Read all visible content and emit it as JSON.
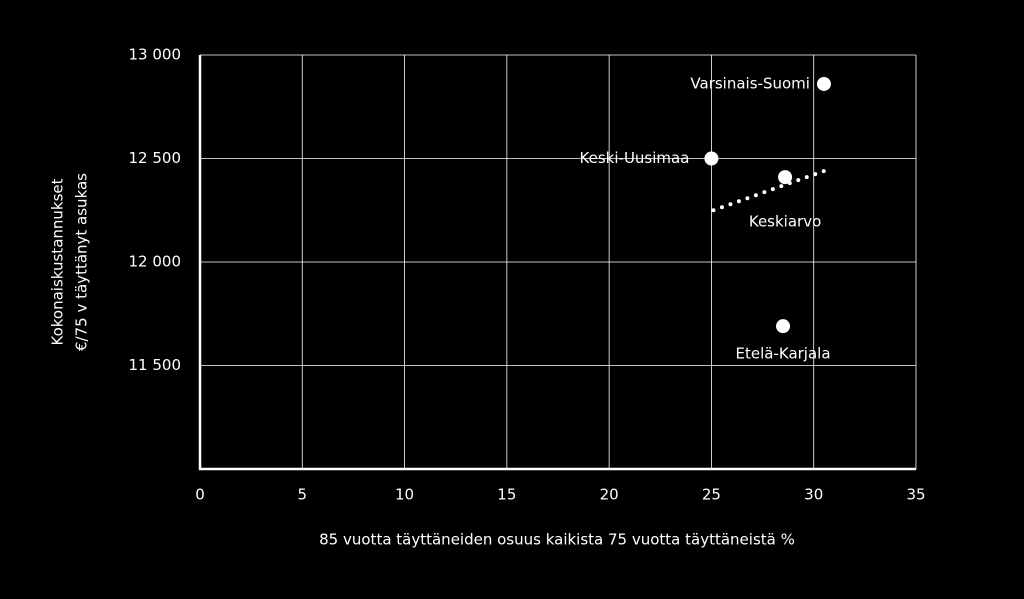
{
  "chart_data": {
    "type": "scatter",
    "x_label": "85 vuotta täyttäneiden osuus kaikista 75 vuotta täyttäneistä %",
    "y_label": [
      "Kokonaiskustannukset",
      "€/75 v täyttänyt asukas"
    ],
    "labels": [
      "Varsinais-Suomi",
      "Keski-Uusimaa",
      "Keskiarvo",
      "Etelä-Karjala"
    ],
    "x": [
      30.5,
      25.0,
      28.6,
      28.5
    ],
    "values": [
      12860,
      12500,
      12410,
      11690
    ],
    "color": "#ffffff",
    "trend": {
      "x": [
        25.1,
        30.8
      ],
      "values": [
        12250,
        12450
      ]
    },
    "xlim": [
      0,
      35
    ],
    "xticks": [
      0,
      5,
      10,
      15,
      20,
      25,
      30,
      35
    ],
    "ylim": [
      11000,
      13000
    ],
    "yticks": [
      {
        "value": 11500,
        "label": "11 500"
      },
      {
        "value": 12000,
        "label": "12 000"
      },
      {
        "value": 12500,
        "label": "12 500"
      },
      {
        "value": 13000,
        "label": "13 000"
      }
    ],
    "grid": true
  }
}
